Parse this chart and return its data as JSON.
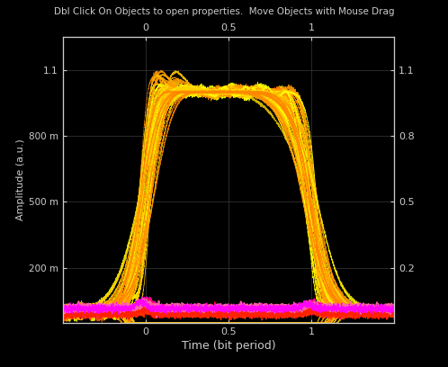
{
  "title": "Dbl Click On Objects to open properties.  Move Objects with Mouse Drag",
  "xlabel": "Time (bit period)",
  "ylabel": "Amplitude (a.u.)",
  "xlim": [
    -0.5,
    1.5
  ],
  "ylim": [
    -0.05,
    1.25
  ],
  "background_color": "#000000",
  "grid_color": "#3a3a3a",
  "text_color": "#cccccc",
  "title_color": "#cccccc",
  "seed": 42,
  "figsize": [
    4.98,
    4.08
  ],
  "dpi": 100
}
